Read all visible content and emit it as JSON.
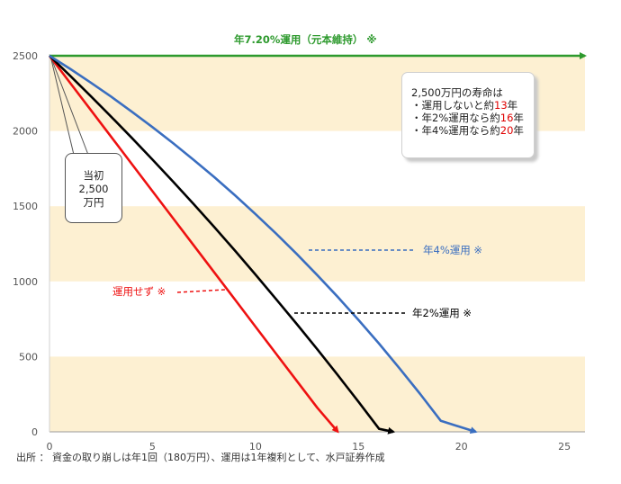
{
  "chart_data": {
    "type": "line",
    "title": "",
    "xlabel": "",
    "ylabel": "",
    "xlim": [
      0,
      26
    ],
    "ylim": [
      0,
      2500
    ],
    "xticks": [
      "0",
      "5",
      "10",
      "15",
      "20",
      "25"
    ],
    "yticks": [
      "0",
      "500",
      "1000",
      "1500",
      "2000",
      "2500"
    ],
    "grid": false,
    "bands": [
      [
        0,
        500
      ],
      [
        1000,
        1500
      ],
      [
        2000,
        2500
      ]
    ],
    "band_color": "#fdf0d2",
    "series": [
      {
        "name": "年7.20%運用（元本維持） ※",
        "color": "#2e9a2e",
        "x": [
          0,
          26
        ],
        "y": [
          2500,
          2500
        ]
      },
      {
        "name": "運用せず ※",
        "color": "#ee1111",
        "x": [
          0,
          1,
          2,
          3,
          4,
          5,
          6,
          7,
          8,
          9,
          10,
          11,
          12,
          13,
          14
        ],
        "y": [
          2500,
          2320,
          2140,
          1960,
          1780,
          1600,
          1420,
          1240,
          1060,
          880,
          700,
          520,
          340,
          160,
          0
        ]
      },
      {
        "name": "年2%運用 ※",
        "color": "#000000",
        "x": [
          0,
          1,
          2,
          3,
          4,
          5,
          6,
          7,
          8,
          9,
          10,
          11,
          12,
          13,
          14,
          15,
          16,
          16.7
        ],
        "y": [
          2500,
          2367,
          2232,
          2094,
          1954,
          1810,
          1663,
          1514,
          1361,
          1205,
          1046,
          883,
          718,
          549,
          376,
          200,
          20,
          0
        ]
      },
      {
        "name": "年4%運用 ※",
        "color": "#3a6ec0",
        "x": [
          0,
          1,
          2,
          3,
          4,
          5,
          6,
          7,
          8,
          9,
          10,
          11,
          12,
          13,
          14,
          15,
          16,
          17,
          18,
          19,
          20,
          20.7
        ],
        "y": [
          2500,
          2413,
          2322,
          2227,
          2128,
          2026,
          1919,
          1808,
          1693,
          1573,
          1448,
          1318,
          1183,
          1042,
          896,
          744,
          586,
          421,
          251,
          73,
          30,
          0
        ]
      }
    ],
    "annotations": [
      "年7.20%運用（元本維持） ※",
      "年4%運用 ※",
      "年2%運用 ※",
      "運用せず ※"
    ]
  },
  "callout": {
    "lines": [
      "当初",
      "2,500",
      "万円"
    ]
  },
  "infobox": {
    "title": "2,500万円の寿命は",
    "items": [
      {
        "pre": "・運用しないと約",
        "num": "13",
        "post": "年"
      },
      {
        "pre": "・年2%運用なら約",
        "num": "16",
        "post": "年"
      },
      {
        "pre": "・年4%運用なら約",
        "num": "20",
        "post": "年"
      }
    ]
  },
  "source": "出所 ： 資金の取り崩しは年1回（180万円）、運用は1年複利として、水戸証券作成"
}
